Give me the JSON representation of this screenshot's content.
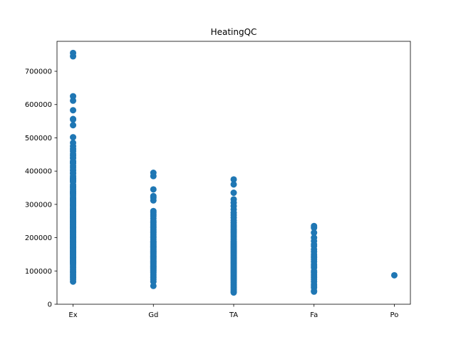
{
  "chart_data": {
    "type": "scatter",
    "title": "HeatingQC",
    "xlabel": "",
    "ylabel": "",
    "categories": [
      "Ex",
      "Gd",
      "TA",
      "Fa",
      "Po"
    ],
    "xlim": [
      -0.2,
      4.2
    ],
    "ylim": [
      0,
      790000
    ],
    "yticks": [
      0,
      100000,
      200000,
      300000,
      400000,
      500000,
      600000,
      700000
    ],
    "grid": false,
    "legend": "none",
    "marker_color": "#1f77b4",
    "series": [
      {
        "category": "Ex",
        "values": [
          755000,
          745000,
          625000,
          611657,
          582933,
          556581,
          555000,
          538000,
          501837,
          485000,
          475000,
          466500,
          460000,
          451950,
          446261,
          440000,
          438780,
          430000,
          426000,
          424870,
          423000,
          415298,
          410000,
          402861,
          402000,
          394617,
          392500,
          385000,
          380000,
          377500,
          375000,
          372500,
          370878,
          369900,
          367294,
          359100,
          354000,
          350000,
          345000,
          340000,
          337500,
          335000,
          333168,
          330000,
          325624,
          320000,
          318000,
          315000,
          312500,
          310000,
          306000,
          302000,
          300000,
          297000,
          295000,
          290000,
          287000,
          285000,
          282922,
          280000,
          278000,
          275000,
          272000,
          270000,
          268000,
          265000,
          262500,
          260000,
          258000,
          255000,
          252000,
          250000,
          248000,
          245000,
          242000,
          240000,
          238000,
          235000,
          232000,
          230000,
          228000,
          225000,
          222000,
          220000,
          218000,
          215000,
          212000,
          210000,
          208000,
          205000,
          202000,
          200000,
          198000,
          195000,
          192000,
          190000,
          188000,
          185000,
          182000,
          180000,
          178000,
          175000,
          172000,
          170000,
          168000,
          165000,
          162000,
          160000,
          158000,
          155000,
          152000,
          150000,
          148000,
          145000,
          142000,
          140000,
          138000,
          135000,
          132000,
          130000,
          128000,
          125000,
          122000,
          120000,
          115000,
          110000,
          105000,
          100000,
          95000,
          90000,
          85000,
          80000,
          75000,
          68000
        ]
      },
      {
        "category": "Gd",
        "values": [
          395000,
          385000,
          345000,
          325000,
          320000,
          312000,
          280000,
          275000,
          270000,
          265000,
          258000,
          250000,
          245000,
          240000,
          235000,
          230000,
          225000,
          220000,
          215000,
          210000,
          205000,
          200000,
          195000,
          190000,
          187000,
          184000,
          181000,
          178000,
          175000,
          172000,
          169000,
          166000,
          163000,
          160000,
          157000,
          154000,
          151000,
          148000,
          145000,
          142000,
          139000,
          136000,
          133000,
          130000,
          127000,
          124000,
          121000,
          118000,
          115000,
          112000,
          109000,
          106000,
          103000,
          100000,
          95000,
          90000,
          85000,
          80000,
          75000,
          68000,
          55000
        ]
      },
      {
        "category": "TA",
        "values": [
          375000,
          360000,
          335000,
          315000,
          305000,
          295000,
          285000,
          275000,
          268000,
          260000,
          252000,
          245000,
          238000,
          232000,
          226000,
          220000,
          214000,
          208000,
          202000,
          196000,
          190000,
          186000,
          182000,
          178000,
          174000,
          170000,
          166000,
          162000,
          158000,
          154000,
          150000,
          146000,
          142000,
          138000,
          134000,
          130000,
          126000,
          122000,
          118000,
          114000,
          110000,
          106000,
          102000,
          98000,
          94000,
          90000,
          86000,
          82000,
          78000,
          74000,
          70000,
          65000,
          60000,
          55000,
          50000,
          45000,
          40000,
          35311
        ]
      },
      {
        "category": "Fa",
        "values": [
          235000,
          230000,
          215000,
          200000,
          190000,
          180000,
          175000,
          165000,
          158000,
          150000,
          145000,
          140000,
          135000,
          128000,
          120000,
          115000,
          110000,
          100000,
          95000,
          90000,
          85000,
          80000,
          75000,
          68000,
          60000,
          55000,
          50000,
          40000,
          37900
        ]
      },
      {
        "category": "Po",
        "values": [
          87000
        ]
      }
    ]
  }
}
